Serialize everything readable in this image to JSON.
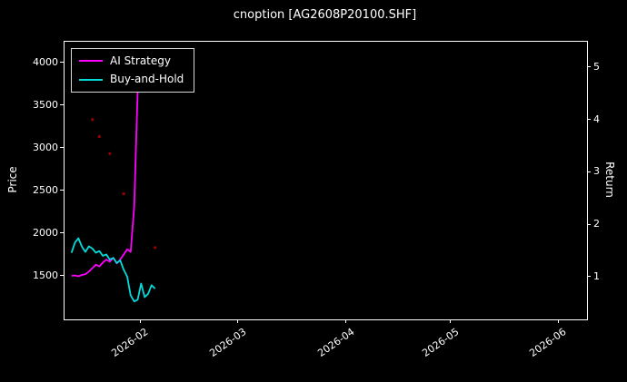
{
  "title": "cnoption [AG2608P20100.SHF]",
  "legend": {
    "items": [
      {
        "label": "AI Strategy",
        "color": "#ff00ff"
      },
      {
        "label": "Buy-and-Hold",
        "color": "#00dcdc"
      }
    ]
  },
  "axes": {
    "left_label": "Price",
    "right_label": "Return",
    "left_ticks": [
      1500,
      2000,
      2500,
      3000,
      3500,
      4000
    ],
    "right_ticks": [
      1,
      2,
      3,
      4,
      5
    ],
    "x_ticks": [
      {
        "label": "2026-02",
        "date": "2026-02-01"
      },
      {
        "label": "2026-03",
        "date": "2026-03-01"
      },
      {
        "label": "2026-04",
        "date": "2026-04-01"
      },
      {
        "label": "2026-05",
        "date": "2026-05-01"
      },
      {
        "label": "2026-06",
        "date": "2026-06-01"
      }
    ]
  },
  "chart_data": {
    "type": "line",
    "title": "cnoption [AG2608P20100.SHF]",
    "xlabel": "",
    "ylabel_left": "Price",
    "ylabel_right": "Return",
    "x_range": [
      "2026-01-10",
      "2026-06-09"
    ],
    "ylim_left": [
      1000,
      4250
    ],
    "ylim_right": [
      0.2,
      5.5
    ],
    "grid": false,
    "legend_position": "upper left",
    "background": "#000000",
    "series": [
      {
        "name": "AI Strategy",
        "color": "#ff00ff",
        "axis": "left",
        "dates": [
          "2026-01-12",
          "2026-01-13",
          "2026-01-14",
          "2026-01-15",
          "2026-01-16",
          "2026-01-17",
          "2026-01-18",
          "2026-01-19",
          "2026-01-20",
          "2026-01-21",
          "2026-01-22",
          "2026-01-23",
          "2026-01-24",
          "2026-01-25",
          "2026-01-26",
          "2026-01-27",
          "2026-01-28",
          "2026-01-29",
          "2026-01-30",
          "2026-01-31"
        ],
        "values": [
          1510,
          1515,
          1505,
          1520,
          1530,
          1560,
          1600,
          1640,
          1620,
          1665,
          1700,
          1675,
          1720,
          1655,
          1700,
          1760,
          1820,
          1790,
          2320,
          3670
        ]
      },
      {
        "name": "Buy-and-Hold",
        "color": "#00dcdc",
        "axis": "left",
        "dates": [
          "2026-01-12",
          "2026-01-13",
          "2026-01-14",
          "2026-01-15",
          "2026-01-16",
          "2026-01-17",
          "2026-01-18",
          "2026-01-19",
          "2026-01-20",
          "2026-01-21",
          "2026-01-22",
          "2026-01-23",
          "2026-01-24",
          "2026-01-25",
          "2026-01-26",
          "2026-01-27",
          "2026-01-28",
          "2026-01-29",
          "2026-01-30",
          "2026-01-31",
          "2026-02-01",
          "2026-02-02",
          "2026-02-03",
          "2026-02-04",
          "2026-02-05"
        ],
        "values": [
          1780,
          1900,
          1950,
          1850,
          1790,
          1855,
          1830,
          1780,
          1800,
          1745,
          1760,
          1700,
          1720,
          1660,
          1690,
          1580,
          1500,
          1280,
          1210,
          1230,
          1420,
          1260,
          1300,
          1400,
          1360
        ]
      }
    ],
    "scatter": {
      "name": "signal-dots",
      "color": "#aa0000",
      "points": [
        {
          "date": "2026-01-18",
          "value": 3340
        },
        {
          "date": "2026-01-20",
          "value": 3140
        },
        {
          "date": "2026-01-23",
          "value": 2940
        },
        {
          "date": "2026-01-27",
          "value": 2470
        },
        {
          "date": "2026-02-05",
          "value": 1840
        }
      ]
    }
  }
}
